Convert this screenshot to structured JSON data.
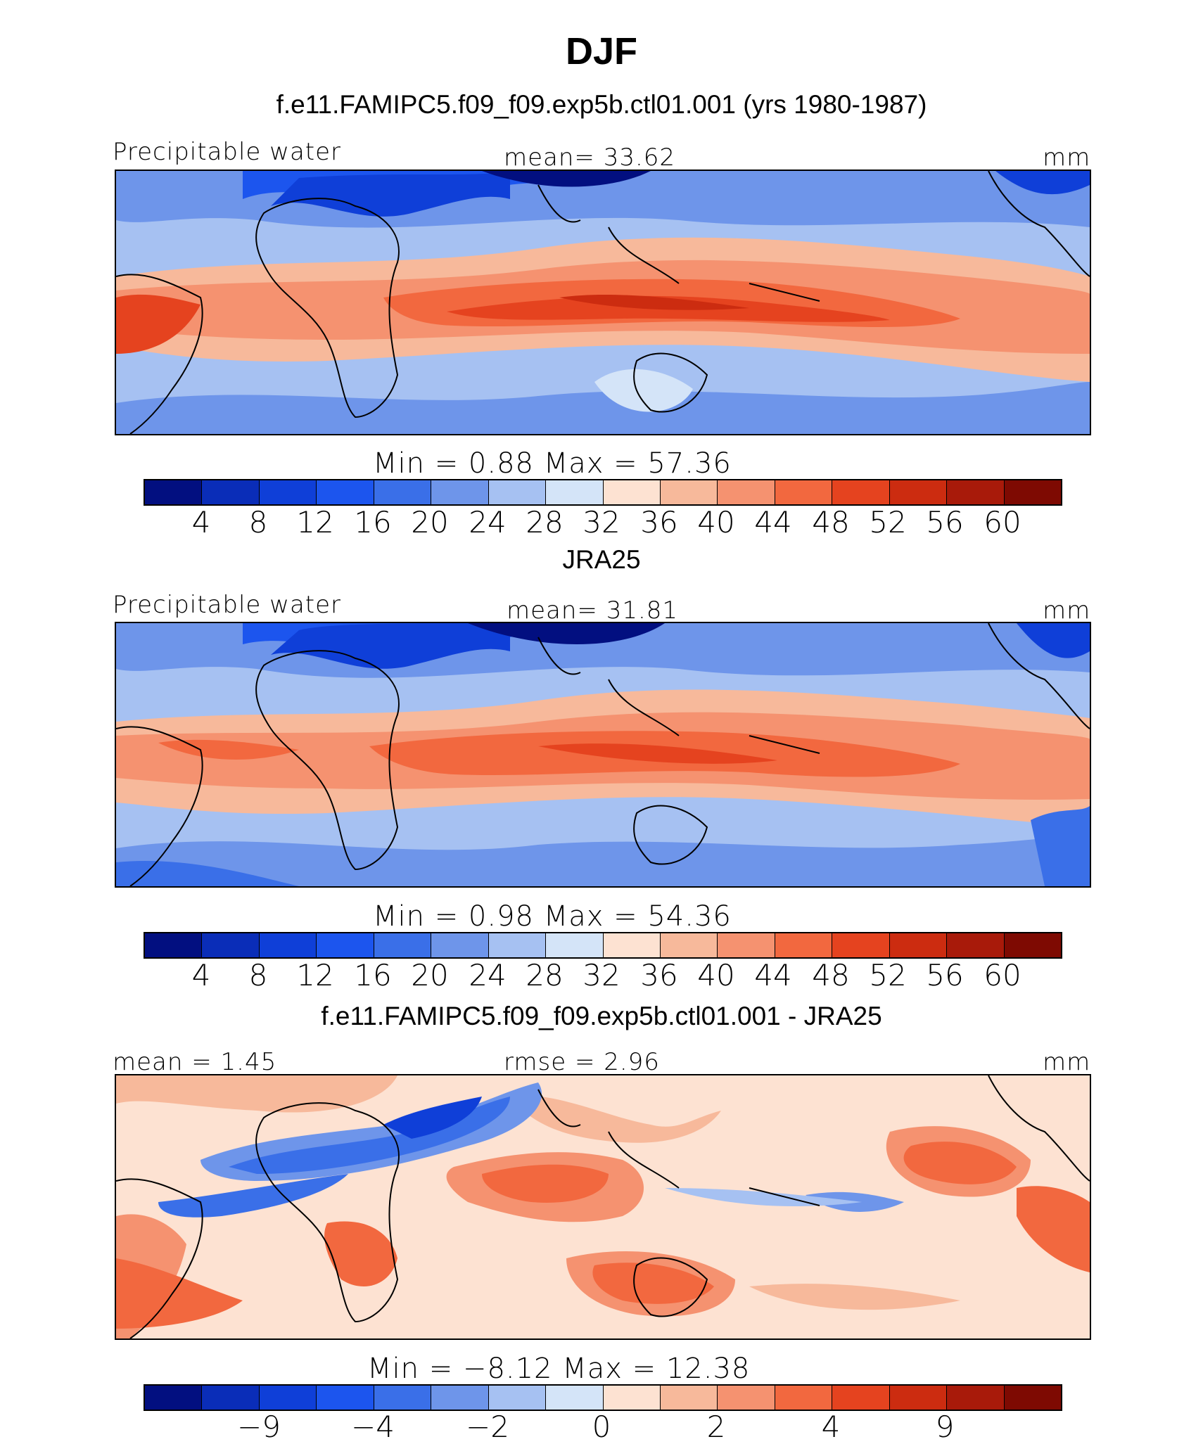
{
  "figure": {
    "title": "DJF"
  },
  "panels": [
    {
      "name": "model",
      "heading": "f.e11.FAMIPC5.f09_f09.exp5b.ctl01.001 (yrs 1980-1987)",
      "left_label": "Precipitable water",
      "center_label": "mean=   33.62",
      "units": "mm",
      "minmax": "Min  =     0.88  Max  =    57.36"
    },
    {
      "name": "observation",
      "heading": "JRA25",
      "left_label": "Precipitable water",
      "center_label": "mean=   31.81",
      "units": "mm",
      "minmax": "Min  =     0.98  Max  =    54.36"
    },
    {
      "name": "difference",
      "heading": "f.e11.FAMIPC5.f09_f09.exp5b.ctl01.001 - JRA25",
      "left_label": "mean  =    1.45",
      "center_label": "rmse  =    2.96",
      "units": "mm",
      "minmax": "Min  =   −8.12  Max  =    12.38"
    }
  ],
  "chart_data": [
    {
      "type": "heatmap",
      "title": "f.e11.FAMIPC5.f09_f09.exp5b.ctl01.001 (yrs 1980-1987)",
      "variable": "Precipitable water",
      "units": "mm",
      "mean": 33.62,
      "min": 0.88,
      "max": 57.36,
      "colorbar_levels": [
        4,
        8,
        12,
        16,
        20,
        24,
        28,
        32,
        36,
        40,
        44,
        48,
        52,
        56,
        60
      ],
      "colorbar_tick_labels": [
        "4",
        "8",
        "12",
        "16",
        "20",
        "24",
        "28",
        "32",
        "36",
        "40",
        "44",
        "48",
        "52",
        "56",
        "60"
      ]
    },
    {
      "type": "heatmap",
      "title": "JRA25",
      "variable": "Precipitable water",
      "units": "mm",
      "mean": 31.81,
      "min": 0.98,
      "max": 54.36,
      "colorbar_levels": [
        4,
        8,
        12,
        16,
        20,
        24,
        28,
        32,
        36,
        40,
        44,
        48,
        52,
        56,
        60
      ],
      "colorbar_tick_labels": [
        "4",
        "8",
        "12",
        "16",
        "20",
        "24",
        "28",
        "32",
        "36",
        "40",
        "44",
        "48",
        "52",
        "56",
        "60"
      ]
    },
    {
      "type": "heatmap",
      "title": "f.e11.FAMIPC5.f09_f09.exp5b.ctl01.001 - JRA25",
      "units": "mm",
      "mean": 1.45,
      "rmse": 2.96,
      "min": -8.12,
      "max": 12.38,
      "colorbar_levels": [
        -9,
        -6,
        -4,
        -3,
        -2,
        -1,
        0,
        1,
        2,
        3,
        4,
        6,
        9
      ],
      "colorbar_tick_labels": [
        "−9",
        "−4",
        "−2",
        "0",
        "2",
        "4",
        "9"
      ]
    }
  ],
  "colors": {
    "palette": [
      "#020f80",
      "#0a2db8",
      "#0f3fd8",
      "#1c55ee",
      "#3a6fe8",
      "#6e95ea",
      "#a6c1f2",
      "#d4e4f8",
      "#fde2d2",
      "#f7b99b",
      "#f59270",
      "#f2683f",
      "#e5431f",
      "#cc2c10",
      "#a81a0a",
      "#7e0a02"
    ]
  }
}
